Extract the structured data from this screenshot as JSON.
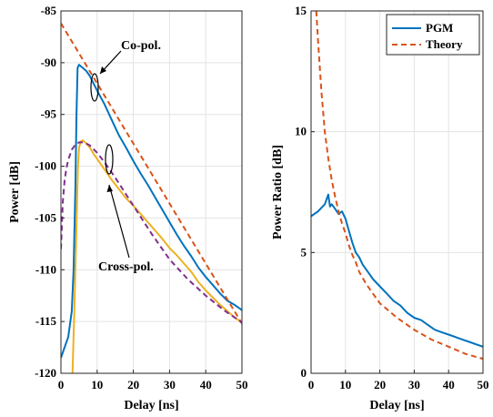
{
  "chart_data": [
    {
      "type": "line",
      "xlabel": "Delay [ns]",
      "ylabel": "Power [dB]",
      "xlim": [
        0,
        50
      ],
      "ylim": [
        -120,
        -85
      ],
      "xticks": [
        0,
        10,
        20,
        30,
        40,
        50
      ],
      "yticks": [
        -120,
        -115,
        -110,
        -105,
        -100,
        -95,
        -90,
        -85
      ],
      "grid": true,
      "annotations": [
        "Co-pol.",
        "Cross-pol."
      ],
      "series": [
        {
          "style": "solid",
          "color": "#0072BD",
          "x": [
            0,
            2,
            3,
            3.5,
            4,
            4.3,
            4.6,
            5,
            6,
            7,
            8,
            9,
            10,
            12,
            14,
            16,
            18,
            20,
            22,
            24,
            26,
            28,
            30,
            32,
            34,
            36,
            38,
            40,
            42,
            44,
            46,
            48,
            50
          ],
          "y": [
            -118.5,
            -116.5,
            -114,
            -110,
            -102,
            -95,
            -90.5,
            -90.2,
            -90.5,
            -90.8,
            -91.3,
            -92.0,
            -92.7,
            -94.0,
            -95.5,
            -97.0,
            -98.2,
            -99.5,
            -100.7,
            -101.8,
            -103.0,
            -104.2,
            -105.4,
            -106.6,
            -107.7,
            -108.7,
            -109.8,
            -110.7,
            -111.5,
            -112.3,
            -113.0,
            -113.4,
            -113.9
          ]
        },
        {
          "style": "solid",
          "color": "#EDB120",
          "x": [
            3.2,
            3.7,
            4.2,
            4.7,
            5,
            5.5,
            6,
            7,
            8,
            9,
            10,
            12,
            14,
            16,
            18,
            20,
            22,
            24,
            26,
            28,
            30,
            32,
            34,
            36,
            38,
            40,
            42,
            44,
            46,
            48,
            50
          ],
          "y": [
            -120,
            -114,
            -107,
            -100,
            -98.2,
            -97.6,
            -97.5,
            -97.8,
            -98.2,
            -98.8,
            -99.3,
            -100.3,
            -101.3,
            -102.2,
            -103.1,
            -103.8,
            -104.6,
            -105.4,
            -106.2,
            -107.0,
            -107.9,
            -108.6,
            -109.4,
            -110.2,
            -111.2,
            -112.0,
            -112.7,
            -113.4,
            -114.0,
            -114.6,
            -115.1
          ]
        },
        {
          "style": "dashed",
          "color": "#D95319",
          "x": [
            0,
            10,
            20,
            30,
            40,
            50
          ],
          "y": [
            -86.2,
            -92.0,
            -97.8,
            -103.6,
            -109.4,
            -115.2
          ]
        },
        {
          "style": "dashed",
          "color": "#7E2F8E",
          "x": [
            0,
            0.5,
            1,
            1.5,
            2,
            3,
            4,
            5,
            6,
            7,
            8,
            10,
            12,
            15,
            20,
            25,
            30,
            35,
            40,
            45,
            50
          ],
          "y": [
            -108,
            -103.5,
            -101.4,
            -100.2,
            -99.4,
            -98.4,
            -97.9,
            -97.7,
            -97.7,
            -97.8,
            -98.0,
            -98.7,
            -99.6,
            -101.1,
            -103.8,
            -106.5,
            -109.0,
            -110.9,
            -112.5,
            -113.9,
            -115.1
          ]
        }
      ]
    },
    {
      "type": "line",
      "xlabel": "Delay [ns]",
      "ylabel": "Power Ratio [dB]",
      "xlim": [
        0,
        50
      ],
      "ylim": [
        0,
        15
      ],
      "xticks": [
        0,
        10,
        20,
        30,
        40,
        50
      ],
      "yticks": [
        0,
        5,
        10,
        15
      ],
      "grid": true,
      "legend": {
        "position": "top-right",
        "entries": [
          "PGM",
          "Theory"
        ]
      },
      "series": [
        {
          "name": "PGM",
          "style": "solid",
          "color": "#0072BD",
          "x": [
            0,
            2,
            4,
            5,
            5.5,
            6,
            7,
            8,
            9,
            10,
            11,
            12,
            13,
            14,
            15,
            16,
            17,
            18,
            20,
            22,
            24,
            26,
            28,
            30,
            32,
            34,
            36,
            38,
            40,
            42,
            44,
            46,
            48,
            50
          ],
          "y": [
            6.5,
            6.7,
            7.0,
            7.4,
            6.9,
            7.0,
            6.8,
            6.6,
            6.7,
            6.4,
            5.9,
            5.4,
            5.0,
            4.8,
            4.5,
            4.3,
            4.1,
            3.9,
            3.6,
            3.3,
            3.0,
            2.8,
            2.5,
            2.3,
            2.2,
            2.0,
            1.8,
            1.7,
            1.6,
            1.5,
            1.4,
            1.3,
            1.2,
            1.1
          ]
        },
        {
          "name": "Theory",
          "style": "dashed",
          "color": "#D95319",
          "x": [
            1.5,
            2,
            3,
            4,
            5,
            6,
            7,
            8,
            9,
            10,
            11,
            12,
            13,
            14,
            16,
            18,
            20,
            25,
            30,
            35,
            40,
            45,
            50
          ],
          "y": [
            15,
            13.8,
            11.7,
            10.0,
            8.9,
            8.0,
            7.3,
            6.7,
            6.2,
            5.8,
            5.3,
            4.9,
            4.6,
            4.2,
            3.7,
            3.3,
            2.9,
            2.3,
            1.8,
            1.4,
            1.1,
            0.8,
            0.6
          ]
        }
      ]
    }
  ]
}
